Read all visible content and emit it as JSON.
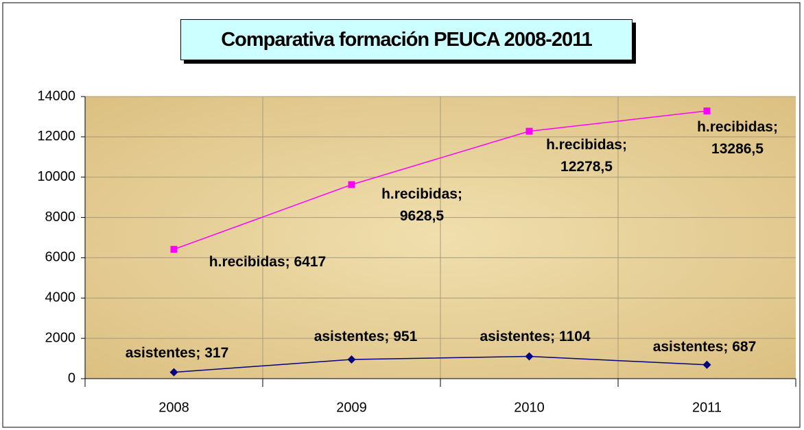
{
  "chart_data": {
    "type": "line",
    "title": "Comparativa formación PEUCA 2008-2011",
    "categories": [
      "2008",
      "2009",
      "2010",
      "2011"
    ],
    "series": [
      {
        "name": "h.recibidas",
        "color": "#ff00ff",
        "values": [
          6417,
          9628.5,
          12278.5,
          13286.5
        ],
        "value_labels": [
          "h.recibidas; 6417",
          "h.recibidas; 9628,5",
          "h.recibidas; 12278,5",
          "h.recibidas; 13286,5"
        ]
      },
      {
        "name": "asistentes",
        "color": "#000080",
        "values": [
          317,
          951,
          1104,
          687
        ],
        "value_labels": [
          "asistentes; 317",
          "asistentes; 951",
          "asistentes; 1104",
          "asistentes; 687"
        ]
      }
    ],
    "ylim": [
      0,
      14000
    ],
    "yticks": [
      0,
      2000,
      4000,
      6000,
      8000,
      10000,
      12000,
      14000
    ],
    "grid": true
  }
}
